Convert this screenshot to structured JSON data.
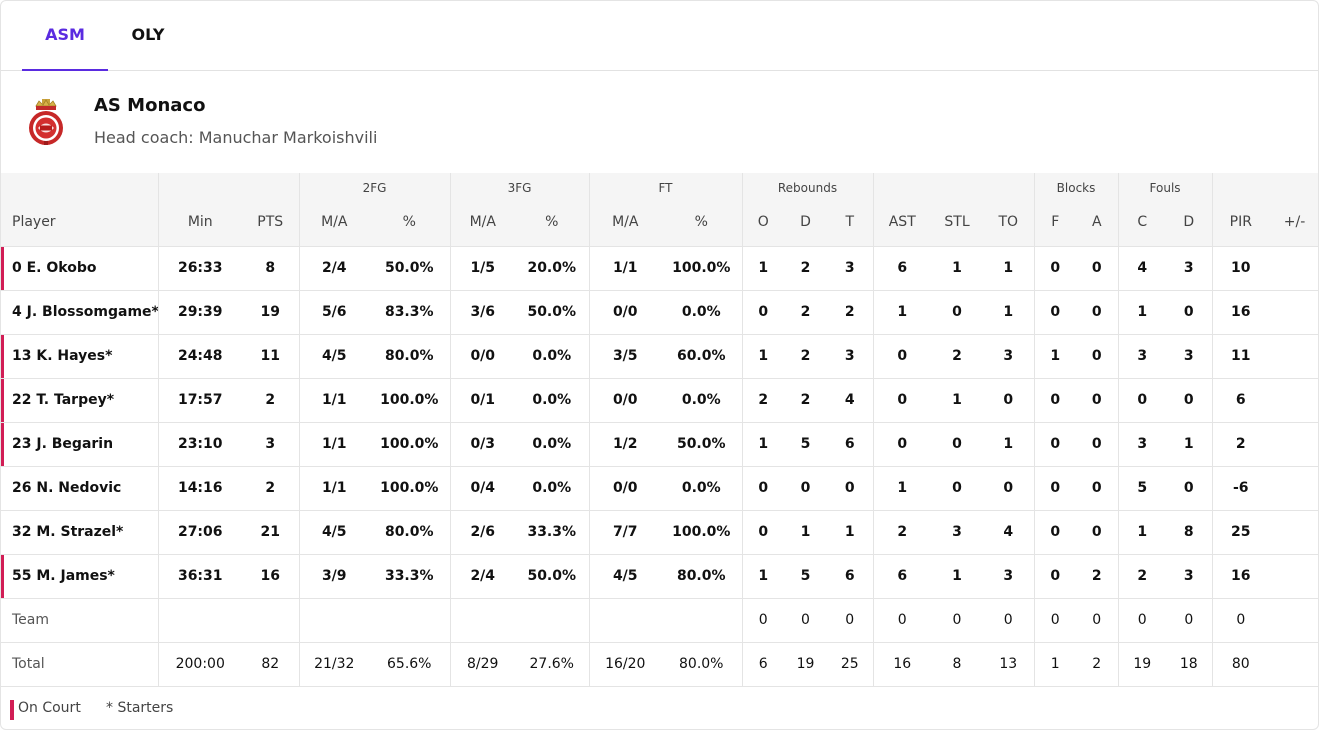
{
  "tabs": [
    {
      "label": "ASM",
      "active": true
    },
    {
      "label": "OLY",
      "active": false
    }
  ],
  "team": {
    "name": "AS Monaco",
    "coach": "Head coach: Manuchar Markoishvili",
    "logo_icon": "as-monaco-crest-icon"
  },
  "table": {
    "groups": {
      "fg2": "2FG",
      "fg3": "3FG",
      "ft": "FT",
      "rebounds": "Rebounds",
      "blocks": "Blocks",
      "fouls": "Fouls"
    },
    "columns": [
      "Player",
      "Min",
      "PTS",
      "M/A",
      "%",
      "M/A",
      "%",
      "M/A",
      "%",
      "O",
      "D",
      "T",
      "AST",
      "STL",
      "TO",
      "F",
      "A",
      "C",
      "D",
      "PIR",
      "+/-"
    ],
    "rows": [
      {
        "player": "0 E. Okobo",
        "on_court": true,
        "cells": [
          "26:33",
          "8",
          "2/4",
          "50.0%",
          "1/5",
          "20.0%",
          "1/1",
          "100.0%",
          "1",
          "2",
          "3",
          "6",
          "1",
          "1",
          "0",
          "0",
          "4",
          "3",
          "10",
          ""
        ]
      },
      {
        "player": "4 J. Blossomgame*",
        "on_court": false,
        "cells": [
          "29:39",
          "19",
          "5/6",
          "83.3%",
          "3/6",
          "50.0%",
          "0/0",
          "0.0%",
          "0",
          "2",
          "2",
          "1",
          "0",
          "1",
          "0",
          "0",
          "1",
          "0",
          "16",
          ""
        ]
      },
      {
        "player": "13 K. Hayes*",
        "on_court": true,
        "cells": [
          "24:48",
          "11",
          "4/5",
          "80.0%",
          "0/0",
          "0.0%",
          "3/5",
          "60.0%",
          "1",
          "2",
          "3",
          "0",
          "2",
          "3",
          "1",
          "0",
          "3",
          "3",
          "11",
          ""
        ]
      },
      {
        "player": "22 T. Tarpey*",
        "on_court": true,
        "cells": [
          "17:57",
          "2",
          "1/1",
          "100.0%",
          "0/1",
          "0.0%",
          "0/0",
          "0.0%",
          "2",
          "2",
          "4",
          "0",
          "1",
          "0",
          "0",
          "0",
          "0",
          "0",
          "6",
          ""
        ]
      },
      {
        "player": "23 J. Begarin",
        "on_court": true,
        "cells": [
          "23:10",
          "3",
          "1/1",
          "100.0%",
          "0/3",
          "0.0%",
          "1/2",
          "50.0%",
          "1",
          "5",
          "6",
          "0",
          "0",
          "1",
          "0",
          "0",
          "3",
          "1",
          "2",
          ""
        ]
      },
      {
        "player": "26 N. Nedovic",
        "on_court": false,
        "cells": [
          "14:16",
          "2",
          "1/1",
          "100.0%",
          "0/4",
          "0.0%",
          "0/0",
          "0.0%",
          "0",
          "0",
          "0",
          "1",
          "0",
          "0",
          "0",
          "0",
          "5",
          "0",
          "-6",
          ""
        ]
      },
      {
        "player": "32 M. Strazel*",
        "on_court": false,
        "cells": [
          "27:06",
          "21",
          "4/5",
          "80.0%",
          "2/6",
          "33.3%",
          "7/7",
          "100.0%",
          "0",
          "1",
          "1",
          "2",
          "3",
          "4",
          "0",
          "0",
          "1",
          "8",
          "25",
          ""
        ]
      },
      {
        "player": "55 M. James*",
        "on_court": true,
        "cells": [
          "36:31",
          "16",
          "3/9",
          "33.3%",
          "2/4",
          "50.0%",
          "4/5",
          "80.0%",
          "1",
          "5",
          "6",
          "6",
          "1",
          "3",
          "0",
          "2",
          "2",
          "3",
          "16",
          ""
        ]
      },
      {
        "player": "Team",
        "on_court": false,
        "plain": true,
        "cells": [
          "",
          "",
          "",
          "",
          "",
          "",
          "",
          "",
          "0",
          "0",
          "0",
          "0",
          "0",
          "0",
          "0",
          "0",
          "0",
          "0",
          "0",
          ""
        ]
      },
      {
        "player": "Total",
        "on_court": false,
        "plain": true,
        "cells": [
          "200:00",
          "82",
          "21/32",
          "65.6%",
          "8/29",
          "27.6%",
          "16/20",
          "80.0%",
          "6",
          "19",
          "25",
          "16",
          "8",
          "13",
          "1",
          "2",
          "19",
          "18",
          "80",
          ""
        ]
      }
    ]
  },
  "legend": {
    "on_court": "On Court",
    "starters": "* Starters"
  },
  "colors": {
    "accent": "#5a2be0",
    "on_court": "#d11d55"
  }
}
